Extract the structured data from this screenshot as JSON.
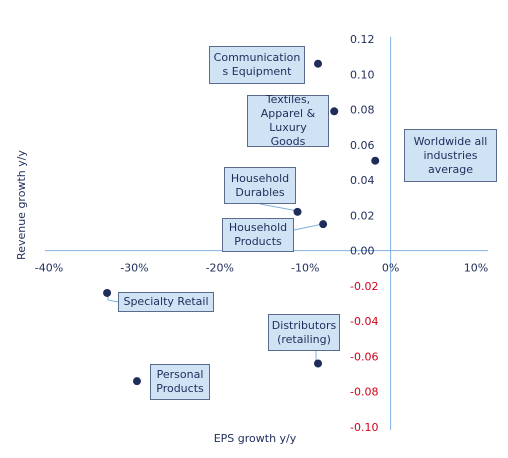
{
  "chart_data": {
    "type": "scatter",
    "xlabel": "EPS growth y/y",
    "ylabel": "Revenue growth y/y",
    "xlim": [
      -0.4,
      0.1
    ],
    "ylim": [
      -0.1,
      0.12
    ],
    "x_ticks": [
      "-40%",
      "-30%",
      "-20%",
      "-10%",
      "0%",
      "10%"
    ],
    "y_ticks": [
      "0.12",
      "0.10",
      "0.08",
      "0.06",
      "0.04",
      "0.02",
      "0.00",
      "-0.02",
      "-0.04",
      "-0.06",
      "-0.08",
      "-0.10"
    ],
    "points": [
      {
        "label": "Communications Equipment",
        "x": -0.085,
        "y": 0.106
      },
      {
        "label": "Textiles, Apparel & Luxury Goods",
        "x": -0.066,
        "y": 0.079
      },
      {
        "label": "Worldwide all industries average",
        "x": -0.018,
        "y": 0.051
      },
      {
        "label": "Household Durables",
        "x": -0.109,
        "y": 0.022
      },
      {
        "label": "Household Products",
        "x": -0.079,
        "y": 0.015
      },
      {
        "label": "Specialty Retail",
        "x": -0.332,
        "y": -0.024
      },
      {
        "label": "Distributors (retailing)",
        "x": -0.085,
        "y": -0.064
      },
      {
        "label": "Personal Products",
        "x": -0.297,
        "y": -0.074
      }
    ],
    "colors": {
      "marker": "#1f2d5a",
      "label_fill": "#cfe3f5",
      "axis": "#7fb0e0",
      "negative_tick": "#d0021b",
      "text": "#1f2d5a"
    },
    "grid": false
  }
}
